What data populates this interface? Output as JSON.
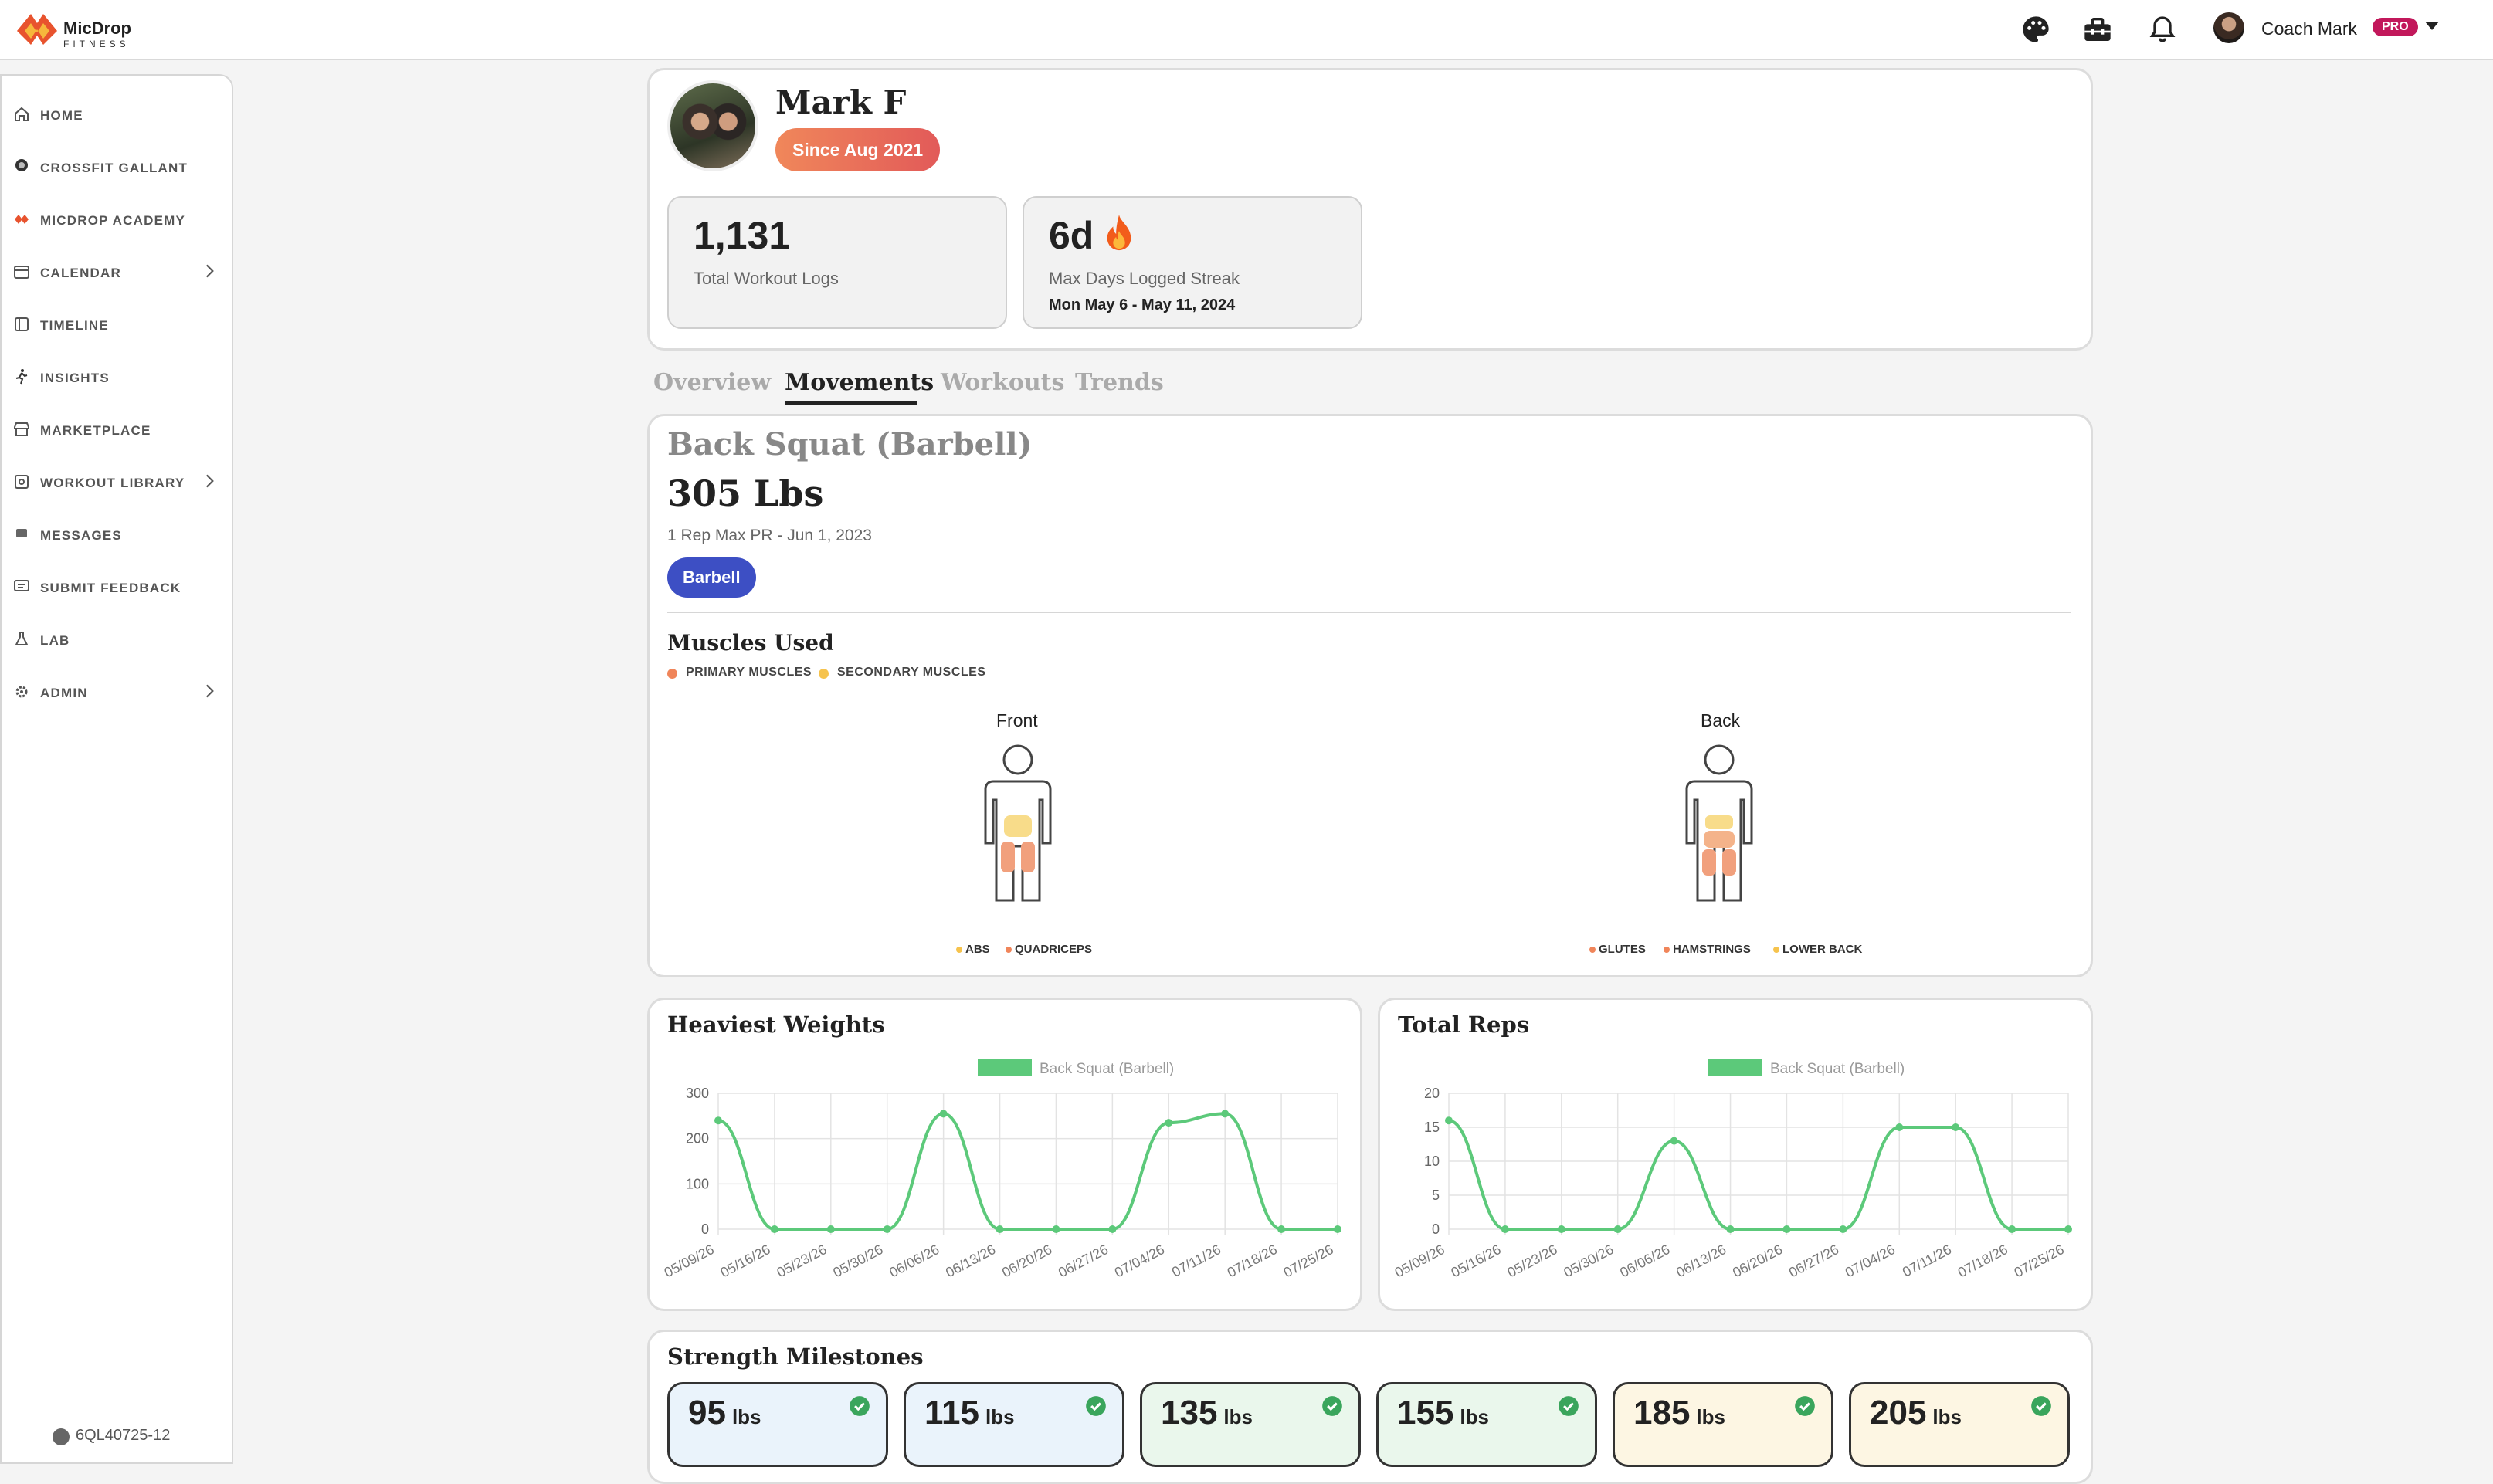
{
  "header": {
    "logo_name": "MicDrop",
    "logo_sub": "FITNESS",
    "icons": [
      "palette-icon",
      "toolbox-icon",
      "bell-icon"
    ],
    "user_name": "Coach Mark",
    "user_badge": "PRO"
  },
  "sidebar": {
    "items": [
      {
        "label": "HOME",
        "icon": "home-icon",
        "chevron": false
      },
      {
        "label": "CROSSFIT GALLANT",
        "icon": "gym-logo-icon",
        "chevron": false
      },
      {
        "label": "MICDROP ACADEMY",
        "icon": "academy-logo-icon",
        "chevron": false
      },
      {
        "label": "CALENDAR",
        "icon": "calendar-icon",
        "chevron": true
      },
      {
        "label": "TIMELINE",
        "icon": "timeline-icon",
        "chevron": false
      },
      {
        "label": "INSIGHTS",
        "icon": "running-icon",
        "chevron": false
      },
      {
        "label": "MARKETPLACE",
        "icon": "store-icon",
        "chevron": false
      },
      {
        "label": "WORKOUT LIBRARY",
        "icon": "library-icon",
        "chevron": true
      },
      {
        "label": "MESSAGES",
        "icon": "chat-icon",
        "chevron": false
      },
      {
        "label": "SUBMIT FEEDBACK",
        "icon": "feedback-icon",
        "chevron": false
      },
      {
        "label": "LAB",
        "icon": "flask-icon",
        "chevron": false
      },
      {
        "label": "ADMIN",
        "icon": "gear-icon",
        "chevron": true
      }
    ],
    "version": "6QL40725-12"
  },
  "profile": {
    "name": "Mark F",
    "since": "Since Aug 2021",
    "stats": {
      "logs_value": "1,131",
      "logs_label": "Total Workout Logs",
      "streak_value": "6d",
      "streak_label": "Max Days Logged Streak",
      "streak_range": "Mon May 6 - May 11, 2024"
    }
  },
  "tabs": [
    {
      "label": "Overview",
      "active": false
    },
    {
      "label": "Movements",
      "active": true
    },
    {
      "label": "Workouts",
      "active": false
    },
    {
      "label": "Trends",
      "active": false
    }
  ],
  "movement": {
    "name": "Back Squat (Barbell)",
    "pr_value": "305 Lbs",
    "pr_sub": "1 Rep Max PR - Jun 1, 2023",
    "equipment": "Barbell",
    "muscles_title": "Muscles Used",
    "legend": {
      "primary": "PRIMARY MUSCLES",
      "secondary": "SECONDARY MUSCLES"
    },
    "colors": {
      "primary": "#f0855a",
      "secondary": "#f6c34d"
    },
    "front_label": "Front",
    "back_label": "Back",
    "front_muscles": [
      {
        "name": "ABS",
        "type": "secondary"
      },
      {
        "name": "QUADRICEPS",
        "type": "primary"
      }
    ],
    "back_muscles": [
      {
        "name": "GLUTES",
        "type": "primary"
      },
      {
        "name": "HAMSTRINGS",
        "type": "primary"
      },
      {
        "name": "LOWER BACK",
        "type": "secondary"
      }
    ]
  },
  "chart_data": [
    {
      "type": "line",
      "title": "Heaviest Weights",
      "categories": [
        "05/09/26",
        "05/16/26",
        "05/23/26",
        "05/30/26",
        "06/06/26",
        "06/13/26",
        "06/20/26",
        "06/27/26",
        "07/04/26",
        "07/11/26",
        "07/18/26",
        "07/25/26"
      ],
      "series": [
        {
          "name": "Back Squat (Barbell)",
          "values": [
            240,
            0,
            0,
            0,
            255,
            0,
            0,
            0,
            235,
            255,
            0,
            0
          ],
          "color": "#5cc97a"
        }
      ],
      "ylim": [
        0,
        300
      ],
      "yticks": [
        0,
        100,
        200,
        300
      ],
      "legend_position": "top-center",
      "grid": true
    },
    {
      "type": "line",
      "title": "Total Reps",
      "categories": [
        "05/09/26",
        "05/16/26",
        "05/23/26",
        "05/30/26",
        "06/06/26",
        "06/13/26",
        "06/20/26",
        "06/27/26",
        "07/04/26",
        "07/11/26",
        "07/18/26",
        "07/25/26"
      ],
      "series": [
        {
          "name": "Back Squat (Barbell)",
          "values": [
            16,
            0,
            0,
            0,
            13,
            0,
            0,
            0,
            15,
            15,
            0,
            0
          ],
          "color": "#5cc97a"
        }
      ],
      "ylim": [
        0,
        20
      ],
      "yticks": [
        0,
        5,
        10,
        15,
        20
      ],
      "legend_position": "top-center",
      "grid": true
    }
  ],
  "milestones": {
    "title": "Strength Milestones",
    "unit": "lbs",
    "items": [
      {
        "value": "95",
        "bg": "#eaf3fb"
      },
      {
        "value": "115",
        "bg": "#eaf3fb"
      },
      {
        "value": "135",
        "bg": "#eaf7ec"
      },
      {
        "value": "155",
        "bg": "#eaf7ec"
      },
      {
        "value": "185",
        "bg": "#fdf6e3"
      },
      {
        "value": "205",
        "bg": "#fdf6e3"
      }
    ]
  }
}
